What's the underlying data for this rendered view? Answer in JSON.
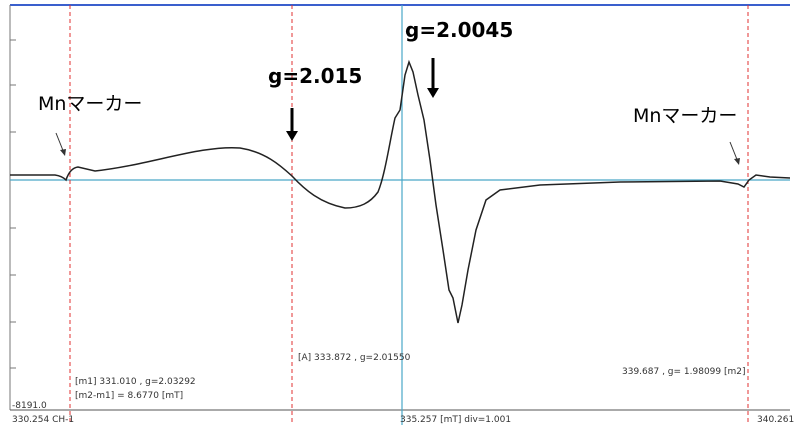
{
  "annotations": {
    "peak_center": "g=2.0045",
    "peak_left": "g=2.015",
    "marker_left": "Mnマーカー",
    "marker_right": "Mnマーカー"
  },
  "readouts": {
    "y_min": "-8191.0",
    "x_left": "330.254  CH-1",
    "x_center": "335.257  [mT]  div=1.001",
    "x_right": "340.261",
    "m1": "[m1]   331.010 , g=2.03292",
    "m2_m1": "[m2-m1] = 8.6770  [mT]",
    "a": "[A]   333.872 , g=2.01550",
    "m2": "339.687 , g=  1.98099   [m2]"
  }
}
